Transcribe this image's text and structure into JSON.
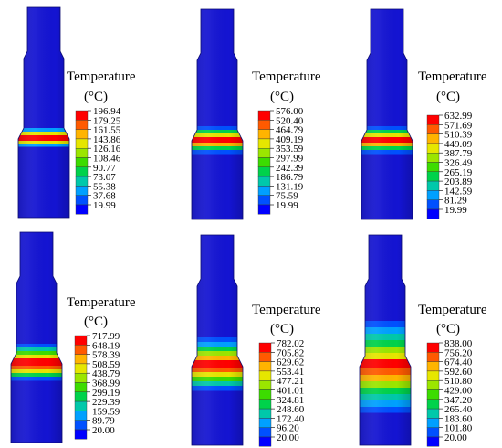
{
  "panels": [
    {
      "title": "Temperature",
      "unit": "(°C)",
      "legend_values": [
        "196.94",
        "179.25",
        "161.55",
        "143.86",
        "126.16",
        "108.46",
        "90.77",
        "73.07",
        "55.38",
        "37.68",
        "19.99"
      ],
      "hot_zone": "narrow"
    },
    {
      "title": "Temperature",
      "unit": "(°C)",
      "legend_values": [
        "576.00",
        "520.40",
        "464.79",
        "409.19",
        "353.59",
        "297.99",
        "242.39",
        "186.79",
        "131.19",
        "75.59",
        "19.99"
      ],
      "hot_zone": "narrow-gradient"
    },
    {
      "title": "Temperature",
      "unit": "(°C)",
      "legend_values": [
        "632.99",
        "571.69",
        "510.39",
        "449.09",
        "387.79",
        "326.49",
        "265.19",
        "203.89",
        "142.59",
        "81.29",
        "19.99"
      ],
      "hot_zone": "narrow-gradient"
    },
    {
      "title": "Temperature",
      "unit": "(°C)",
      "legend_values": [
        "717.99",
        "648.19",
        "578.39",
        "508.59",
        "438.79",
        "368.99",
        "299.19",
        "229.39",
        "159.59",
        "89.79",
        "20.00"
      ],
      "hot_zone": "medium"
    },
    {
      "title": "Temperature",
      "unit": "(°C)",
      "legend_values": [
        "782.02",
        "705.82",
        "629.62",
        "553.41",
        "477.21",
        "401.01",
        "324.81",
        "248.60",
        "172.40",
        "96.20",
        "20.00"
      ],
      "hot_zone": "wide"
    },
    {
      "title": "Temperature",
      "unit": "(°C)",
      "legend_values": [
        "838.00",
        "756.20",
        "674.40",
        "592.60",
        "510.80",
        "429.00",
        "347.20",
        "265.40",
        "183.60",
        "101.80",
        "20.00"
      ],
      "hot_zone": "widest"
    }
  ],
  "colors": {
    "contour": [
      "#ff0000",
      "#ff5a00",
      "#ffb400",
      "#e6e600",
      "#9be600",
      "#3cdc00",
      "#00d24b",
      "#00c8aa",
      "#00a0ff",
      "#0050ff",
      "#0000ff"
    ],
    "part_blue": "#1414d2"
  }
}
